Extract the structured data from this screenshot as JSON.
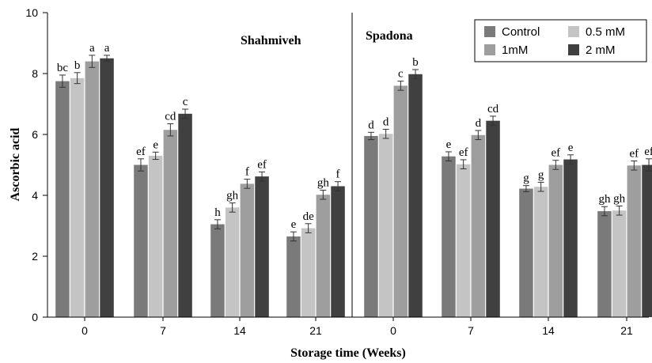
{
  "chart_data": {
    "type": "bar",
    "title": "",
    "xlabel": "Storage time (Weeks)",
    "ylabel": "Ascorbic acid",
    "ylim": [
      0,
      10
    ],
    "yticks": [
      "0",
      "2",
      "4",
      "6",
      "8",
      "10"
    ],
    "grid": false,
    "legend_position": "top-right",
    "panels": [
      {
        "title": "Shahmiveh",
        "categories": [
          "0",
          "7",
          "14",
          "21"
        ],
        "series": [
          {
            "name": "Control",
            "values": [
              7.75,
              5.0,
              3.05,
              2.65
            ],
            "errors": [
              0.2,
              0.2,
              0.15,
              0.15
            ],
            "letters": [
              "bc",
              "ef",
              "h",
              "e"
            ]
          },
          {
            "name": "0.5 mM",
            "values": [
              7.85,
              5.3,
              3.6,
              2.92
            ],
            "errors": [
              0.18,
              0.12,
              0.15,
              0.15
            ],
            "letters": [
              "b",
              "e",
              "gh",
              "de"
            ]
          },
          {
            "name": "1mM",
            "values": [
              8.4,
              6.15,
              4.38,
              4.02
            ],
            "errors": [
              0.2,
              0.2,
              0.15,
              0.15
            ],
            "letters": [
              "a",
              "cd",
              "f",
              "gh"
            ]
          },
          {
            "name": "2 mM",
            "values": [
              8.5,
              6.68,
              4.62,
              4.3
            ],
            "errors": [
              0.1,
              0.15,
              0.15,
              0.15
            ],
            "letters": [
              "a",
              "c",
              "ef",
              "f"
            ]
          }
        ]
      },
      {
        "title": "Spadona",
        "categories": [
          "0",
          "7",
          "14",
          "21"
        ],
        "series": [
          {
            "name": "Control",
            "values": [
              5.95,
              5.28,
              4.22,
              3.48
            ],
            "errors": [
              0.12,
              0.15,
              0.1,
              0.15
            ],
            "letters": [
              "d",
              "e",
              "g",
              "gh"
            ]
          },
          {
            "name": "0.5 mM",
            "values": [
              6.02,
              5.02,
              4.28,
              3.5
            ],
            "errors": [
              0.15,
              0.15,
              0.15,
              0.15
            ],
            "letters": [
              "d",
              "ef",
              "g",
              "gh"
            ]
          },
          {
            "name": "1mM",
            "values": [
              7.6,
              5.98,
              5.0,
              4.98
            ],
            "errors": [
              0.15,
              0.15,
              0.15,
              0.15
            ],
            "letters": [
              "c",
              "d",
              "ef",
              "ef"
            ]
          },
          {
            "name": "2 mM",
            "values": [
              7.98,
              6.45,
              5.18,
              5.0
            ],
            "errors": [
              0.15,
              0.15,
              0.15,
              0.2
            ],
            "letters": [
              "b",
              "cd",
              "e",
              "ef"
            ]
          }
        ]
      }
    ],
    "legend": [
      {
        "name": "Control",
        "color": "#7a7a7a"
      },
      {
        "name": "0.5 mM",
        "color": "#c4c4c4"
      },
      {
        "name": "1mM",
        "color": "#9e9e9e"
      },
      {
        "name": "2 mM",
        "color": "#404040"
      }
    ]
  }
}
